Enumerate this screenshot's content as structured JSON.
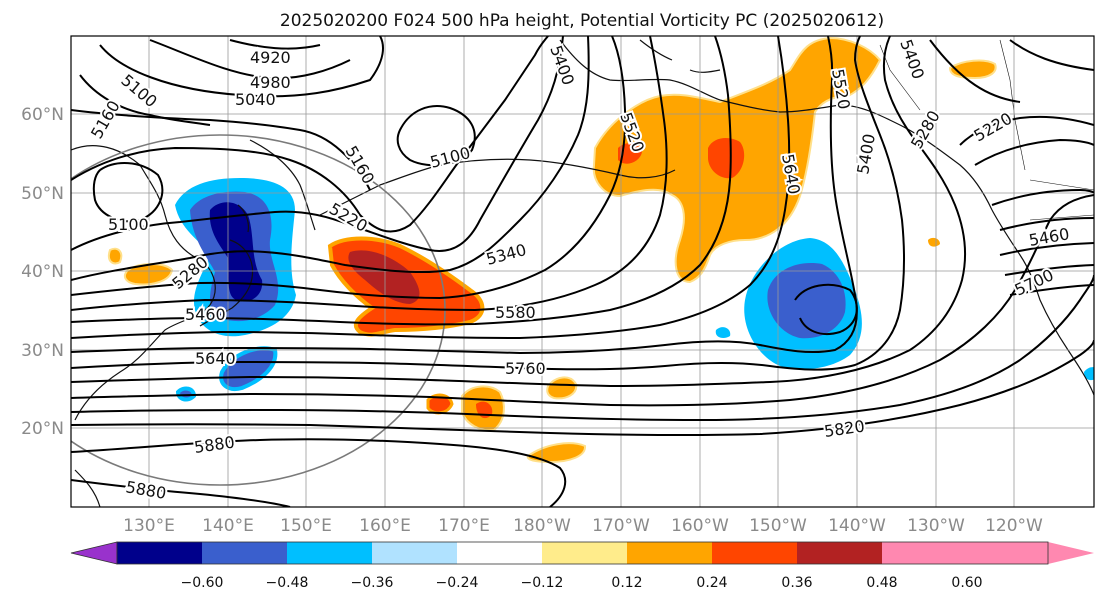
{
  "title": "2025020200 F024 500 hPa height, Potential Vorticity PC (2025020612)",
  "lat_labels": [
    "60°N",
    "50°N",
    "40°N",
    "30°N",
    "20°N"
  ],
  "lon_labels": [
    "130°E",
    "140°E",
    "150°E",
    "160°E",
    "170°E",
    "180°W",
    "170°W",
    "160°W",
    "150°W",
    "140°W",
    "130°W",
    "120°W"
  ],
  "contour_labels": [
    "4920",
    "4980",
    "5040",
    "5100",
    "5160",
    "5100",
    "5100",
    "5160",
    "5220",
    "5280",
    "5340",
    "5400",
    "5460",
    "5400",
    "5520",
    "5520",
    "5640",
    "5400",
    "5280",
    "5220",
    "5460",
    "5580",
    "5640",
    "5700",
    "5760",
    "5820",
    "5880",
    "5880"
  ],
  "colorbar": {
    "ticks": [
      "−0.60",
      "−0.48",
      "−0.36",
      "−0.24",
      "−0.12",
      "0.12",
      "0.24",
      "0.36",
      "0.48",
      "0.60"
    ],
    "colors": [
      "#9932cc",
      "#00008b",
      "#3a5fcd",
      "#00bfff",
      "#b0e2ff",
      "#ffffff",
      "#ffec8b",
      "#ffa500",
      "#ff4500",
      "#b22222",
      "#ff88b0"
    ]
  }
}
